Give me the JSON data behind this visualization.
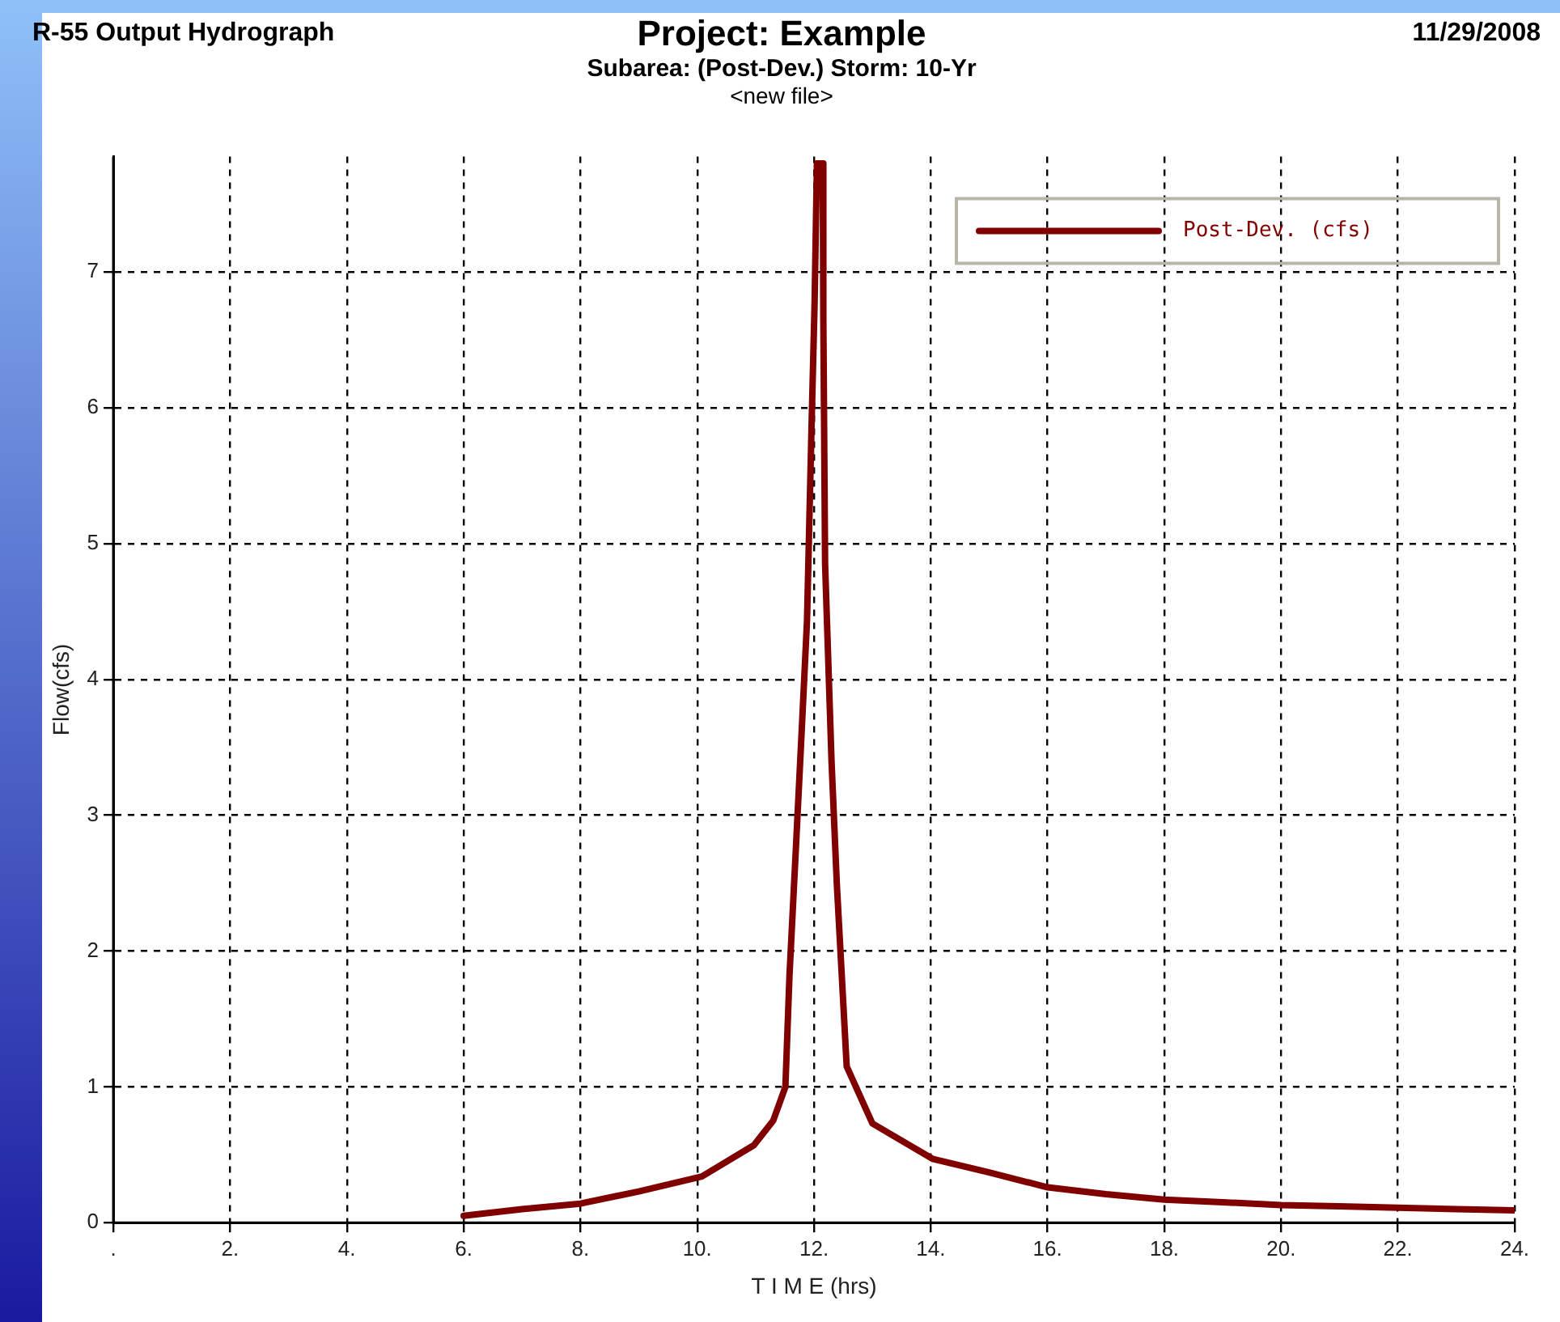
{
  "chart_data": {
    "type": "line",
    "title": "Project: Example",
    "subtitle": "Subarea: (Post-Dev.)  Storm: 10-Yr",
    "annotations": [
      "<new file>",
      "R-55 Output Hydrograph",
      "11/29/2008"
    ],
    "xlabel": "T I M E (hrs)",
    "ylabel": "Flow(cfs)",
    "xlim": [
      0,
      24
    ],
    "xticks": [
      {
        "value": 0,
        "label": "."
      },
      {
        "value": 2,
        "label": "2."
      },
      {
        "value": 4,
        "label": "4."
      },
      {
        "value": 6,
        "label": "6."
      },
      {
        "value": 8,
        "label": "8."
      },
      {
        "value": 10,
        "label": "10."
      },
      {
        "value": 12,
        "label": "12."
      },
      {
        "value": 14,
        "label": "14."
      },
      {
        "value": 16,
        "label": "16."
      },
      {
        "value": 18,
        "label": "18."
      },
      {
        "value": 20,
        "label": "20."
      },
      {
        "value": 22,
        "label": "22."
      },
      {
        "value": 24,
        "label": "24."
      }
    ],
    "ylim": [
      0,
      7.85
    ],
    "yticks": [
      0,
      1,
      2,
      3,
      4,
      5,
      6,
      7
    ],
    "grid": true,
    "legend": "top right",
    "line_style": "solid",
    "marker": "none",
    "series": [
      {
        "name": "Post-Dev. (cfs)",
        "color": "#800000",
        "x": [
          6,
          7,
          8,
          9,
          10.08,
          10.97,
          11.3,
          11.51,
          11.58,
          11.69,
          11.78,
          11.88,
          11.96,
          12.01,
          12.05,
          12.15,
          12.16,
          12.19,
          12.3,
          12.39,
          12.56,
          13.0,
          14.03,
          15,
          16,
          17,
          18,
          19,
          20,
          21,
          22,
          23,
          24
        ],
        "values": [
          0.05,
          0.1,
          0.14,
          0.23,
          0.34,
          0.57,
          0.75,
          1.0,
          1.82,
          2.76,
          3.54,
          4.43,
          5.9,
          6.77,
          7.8,
          7.8,
          6.65,
          4.85,
          3.4,
          2.5,
          1.15,
          0.73,
          0.47,
          0.37,
          0.26,
          0.21,
          0.17,
          0.15,
          0.13,
          0.12,
          0.11,
          0.1,
          0.09
        ]
      }
    ]
  }
}
